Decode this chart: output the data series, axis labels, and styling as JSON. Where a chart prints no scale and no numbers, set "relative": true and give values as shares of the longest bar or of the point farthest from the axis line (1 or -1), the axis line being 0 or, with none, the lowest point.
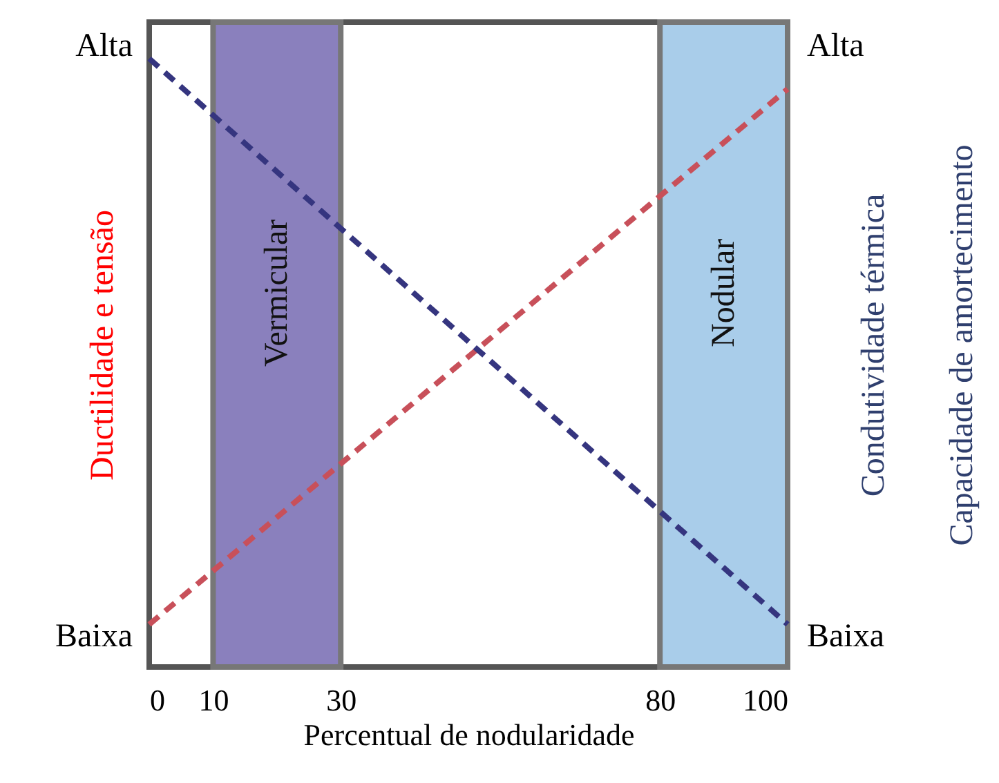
{
  "chart_data": {
    "type": "line",
    "xlabel": "Percentual de nodularidade",
    "ylabel": "Ductilidade e tensão",
    "y2label": "Condutividade térmica\nCapacidade de amortecimento",
    "x": [
      0,
      100
    ],
    "xlim": [
      0,
      100
    ],
    "xticks": [
      0,
      10,
      30,
      80,
      100
    ],
    "relative": true,
    "annotations": [
      "Alta",
      "Baixa",
      "Alta",
      "Baixa"
    ],
    "series": [
      {
        "color": "#c8505a",
        "values": [
          0.07,
          0.95
        ]
      },
      {
        "color": "#35357f",
        "values": [
          1,
          0.07
        ],
        "axis": "y2"
      }
    ],
    "bands": [
      {
        "axis": "x",
        "from": 10,
        "to": 30,
        "label": "Vermicular",
        "color": "#8a80bd"
      },
      {
        "axis": "x",
        "from": 80,
        "to": 100,
        "label": "Nodular",
        "color": "#a9cdea"
      }
    ],
    "line_style": "dashed",
    "grid": false
  }
}
